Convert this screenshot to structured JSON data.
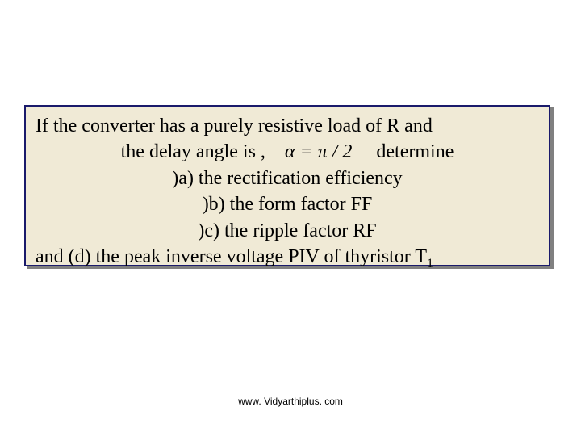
{
  "box": {
    "background_color": "#f0ead6",
    "border_color": "#1a1a6b",
    "shadow_color": "#808080",
    "text_color": "#000000",
    "font_family": "Times New Roman",
    "fontsize": 24,
    "line1_a": "If the converter has a purely resistive load of R and",
    "line2_a": "the delay angle is ,",
    "equation": "α = π / 2",
    "line2_b": "determine",
    "line3": ")a) the rectification efficiency",
    "line4": ")b) the form factor FF",
    "line5": ")c) the ripple factor RF",
    "line6_a": "and (d) the peak inverse voltage PIV of thyristor T",
    "line6_sub": "1"
  },
  "footer": {
    "text": "www. Vidyarthiplus. com",
    "fontsize": 12,
    "font_family": "Arial"
  }
}
